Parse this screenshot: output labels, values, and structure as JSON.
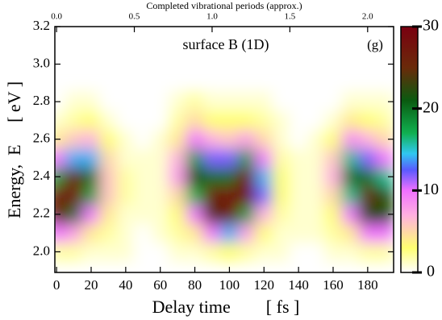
{
  "chart_data": {
    "type": "heatmap",
    "title": "surface B (1D)",
    "annotation": "(g)",
    "x_label": "Delay time        [ fs ]",
    "y_label": "Energy,  E     [ eV ]",
    "x2_label": "Completed vibrational periods (approx.)",
    "x": [
      0,
      10,
      20,
      30,
      40,
      50,
      60,
      70,
      80,
      90,
      100,
      110,
      120,
      130,
      140,
      150,
      160,
      170,
      180,
      190
    ],
    "y": [
      2.0,
      2.1,
      2.2,
      2.3,
      2.4,
      2.5,
      2.6,
      2.7,
      2.8
    ],
    "z": [
      [
        2,
        2,
        1,
        1,
        1,
        0,
        0,
        1,
        1,
        2,
        3,
        2,
        1,
        1,
        0,
        0,
        1,
        1,
        2,
        2
      ],
      [
        10,
        8,
        4,
        2,
        1,
        0,
        1,
        2,
        4,
        10,
        14,
        8,
        3,
        1,
        1,
        1,
        2,
        4,
        10,
        10
      ],
      [
        27,
        20,
        10,
        4,
        1,
        1,
        1,
        3,
        10,
        24,
        27,
        18,
        7,
        2,
        1,
        1,
        3,
        10,
        22,
        22
      ],
      [
        26,
        28,
        18,
        6,
        2,
        1,
        1,
        5,
        17,
        26,
        28,
        27,
        12,
        3,
        1,
        1,
        5,
        16,
        25,
        22
      ],
      [
        18,
        26,
        20,
        6,
        2,
        1,
        1,
        8,
        22,
        20,
        20,
        28,
        14,
        3,
        1,
        1,
        7,
        20,
        20,
        16
      ],
      [
        10,
        14,
        14,
        5,
        1,
        1,
        1,
        7,
        18,
        12,
        12,
        18,
        10,
        2,
        1,
        1,
        6,
        16,
        12,
        10
      ],
      [
        4,
        6,
        7,
        3,
        1,
        0,
        1,
        4,
        10,
        7,
        6,
        8,
        5,
        1,
        0,
        1,
        3,
        9,
        7,
        5
      ],
      [
        1,
        2,
        3,
        1,
        0,
        0,
        0,
        2,
        5,
        3,
        3,
        3,
        2,
        1,
        0,
        0,
        1,
        4,
        3,
        2
      ],
      [
        0,
        1,
        1,
        0,
        0,
        0,
        0,
        1,
        2,
        1,
        1,
        1,
        1,
        0,
        0,
        0,
        0,
        1,
        1,
        1
      ]
    ],
    "xlim": [
      -1,
      195
    ],
    "ylim": [
      1.89,
      3.2
    ],
    "x2lim": [
      -0.011,
      2.167
    ],
    "xticks": [
      0,
      20,
      40,
      60,
      80,
      100,
      120,
      140,
      160,
      180
    ],
    "yticks": [
      {
        "value": 2.0,
        "label": "2.0"
      },
      2.2,
      2.4,
      2.6,
      2.8,
      {
        "value": 3.0,
        "label": "3.0"
      },
      3.2
    ],
    "x2ticks": [
      {
        "value": 0,
        "label": "0.0"
      },
      0.5,
      {
        "value": 1,
        "label": "1.0"
      },
      1.5,
      {
        "value": 2,
        "label": "2.0"
      }
    ],
    "zlim": [
      0,
      30
    ],
    "zticks": [
      0,
      10,
      20,
      30
    ],
    "colormap": [
      {
        "value": 0,
        "color": "#ffffff"
      },
      {
        "value": 3,
        "color": "#ffff70"
      },
      {
        "value": 7,
        "color": "#ffb0e0"
      },
      {
        "value": 10,
        "color": "#f070ff"
      },
      {
        "value": 12.5,
        "color": "#5a5aff"
      },
      {
        "value": 14.5,
        "color": "#30c8f0"
      },
      {
        "value": 17,
        "color": "#10b050"
      },
      {
        "value": 21,
        "color": "#0a5a10"
      },
      {
        "value": 25,
        "color": "#6a2a0a"
      },
      {
        "value": 30,
        "color": "#7a0010"
      }
    ]
  }
}
